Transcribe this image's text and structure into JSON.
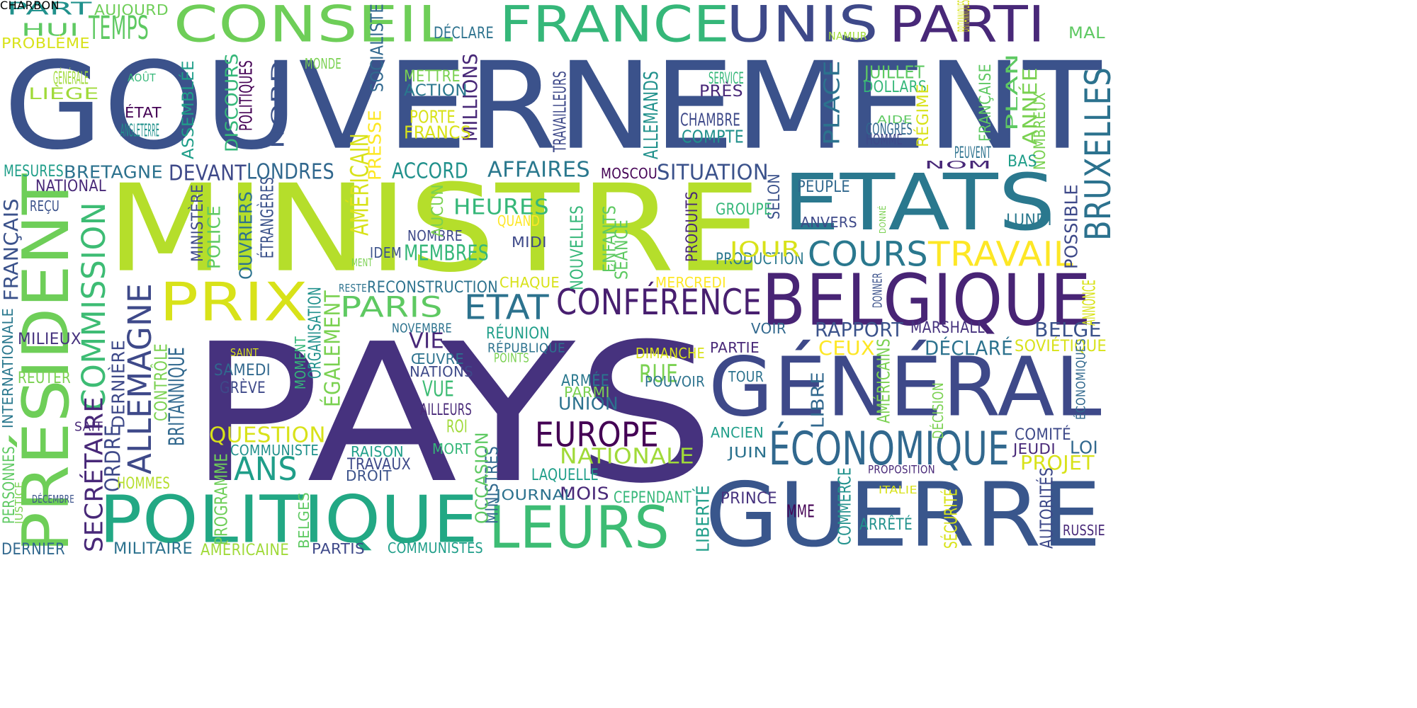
{
  "words": [
    {
      "text": "GOUVERNEMENT",
      "color": "#3b528b"
    },
    {
      "text": "MINISTRE",
      "color": "#b5de2b"
    },
    {
      "text": "PAYS",
      "color": "#46327e"
    },
    {
      "text": "ETATS",
      "color": "#2a788e"
    },
    {
      "text": "GÉNÉRAL",
      "color": "#3e4989"
    },
    {
      "text": "GUERRE",
      "color": "#39568c"
    },
    {
      "text": "BELGIQUE",
      "color": "#482475"
    },
    {
      "text": "PRÉSIDENT",
      "color": "#6ece58"
    },
    {
      "text": "FRANCE",
      "color": "#35b779"
    },
    {
      "text": "CONSEIL",
      "color": "#6ece58"
    },
    {
      "text": "UNIS",
      "color": "#3e4989"
    },
    {
      "text": "PARTI",
      "color": "#482878"
    },
    {
      "text": "POLITIQUE",
      "color": "#22a884"
    },
    {
      "text": "LEURS",
      "color": "#3dbc74"
    },
    {
      "text": "PRIX",
      "color": "#d8e219"
    },
    {
      "text": "ÉCONOMIQUE",
      "color": "#31688e"
    },
    {
      "text": "COURS",
      "color": "#2a788e"
    },
    {
      "text": "TRAVAIL",
      "color": "#fde725"
    },
    {
      "text": "CONFÉRENCE",
      "color": "#481f70"
    },
    {
      "text": "EUROPE",
      "color": "#440154"
    },
    {
      "text": "ETAT",
      "color": "#2c728e"
    },
    {
      "text": "BRUXELLES",
      "color": "#2c728e"
    },
    {
      "text": "COMMISSION",
      "color": "#3dbc74"
    },
    {
      "text": "ALLEMAGNE",
      "color": "#3e4989"
    },
    {
      "text": "PARIS",
      "color": "#5ec962"
    },
    {
      "text": "ANS",
      "color": "#1f9e89"
    },
    {
      "text": "NATIONALE",
      "color": "#a0da39"
    },
    {
      "text": "QUESTION",
      "color": "#d8e219"
    },
    {
      "text": "SECRÉTAIRE",
      "color": "#482878"
    },
    {
      "text": "ORDRE",
      "color": "#3e4989"
    },
    {
      "text": "BRITANNIQUE",
      "color": "#31688e"
    },
    {
      "text": "CONTRÔLE",
      "color": "#7ad151"
    },
    {
      "text": "DERNIÈRE",
      "color": "#3e4989"
    },
    {
      "text": "INTERNATIONALE",
      "color": "#2a788e"
    },
    {
      "text": "FRANÇAIS",
      "color": "#3b528b"
    },
    {
      "text": "PERSONNES",
      "color": "#5ec962"
    },
    {
      "text": "JUSTICE",
      "color": "#7ad151"
    },
    {
      "text": "RAPPORT",
      "color": "#3b528b"
    },
    {
      "text": "BELGE",
      "color": "#3b528b"
    },
    {
      "text": "MARSHALL",
      "color": "#46327e"
    },
    {
      "text": "CEUX",
      "color": "#fde725"
    },
    {
      "text": "DÉCLARÉ",
      "color": "#2c728e"
    },
    {
      "text": "SOVIÉTIQUE",
      "color": "#d8e219"
    },
    {
      "text": "PROJET",
      "color": "#d8e219"
    },
    {
      "text": "COMITÉ",
      "color": "#3e4989"
    },
    {
      "text": "JEUDI",
      "color": "#482878"
    },
    {
      "text": "LOI",
      "color": "#31688e"
    },
    {
      "text": "HEURES",
      "color": "#35b779"
    },
    {
      "text": "MEMBRES",
      "color": "#35b779"
    },
    {
      "text": "RECONSTRUCTION",
      "color": "#2c728e"
    },
    {
      "text": "AFFAIRES",
      "color": "#2a788e"
    },
    {
      "text": "ACCORD",
      "color": "#21918c"
    },
    {
      "text": "SITUATION",
      "color": "#3b528b"
    },
    {
      "text": "LONDRES",
      "color": "#31688e"
    },
    {
      "text": "DEVANT",
      "color": "#3e4989"
    },
    {
      "text": "BRETAGNE",
      "color": "#2c728e"
    },
    {
      "text": "MESURES",
      "color": "#1f9e89"
    },
    {
      "text": "NATIONAL",
      "color": "#482878"
    },
    {
      "text": "REÇU",
      "color": "#3b528b"
    },
    {
      "text": "MILIEUX",
      "color": "#46327e"
    },
    {
      "text": "REUTER",
      "color": "#7ad151"
    },
    {
      "text": "SAIT",
      "color": "#482878"
    },
    {
      "text": "HOMMES",
      "color": "#b5de2b"
    },
    {
      "text": "PROGRAMME",
      "color": "#6ece58"
    },
    {
      "text": "COMMUNISTE",
      "color": "#21918c"
    },
    {
      "text": "COMMUNISTES",
      "color": "#1f9e89"
    },
    {
      "text": "PARTIS",
      "color": "#3e4989"
    },
    {
      "text": "MILITAIRE",
      "color": "#2c728e"
    },
    {
      "text": "AMÉRICAINE",
      "color": "#a0da39"
    },
    {
      "text": "DERNIER",
      "color": "#31688e"
    },
    {
      "text": "DÉCEMBRE",
      "color": "#3b528b"
    },
    {
      "text": "BELGES",
      "color": "#5ec962"
    },
    {
      "text": "RAISON",
      "color": "#1f9e89"
    },
    {
      "text": "TRAVAUX",
      "color": "#3e4989"
    },
    {
      "text": "DROIT",
      "color": "#3b528b"
    },
    {
      "text": "MORT",
      "color": "#35b779"
    },
    {
      "text": "ROI",
      "color": "#a0da39"
    },
    {
      "text": "VUE",
      "color": "#3dbc74"
    },
    {
      "text": "AILLEURS",
      "color": "#482878"
    },
    {
      "text": "NATIONS",
      "color": "#3e4989"
    },
    {
      "text": "ŒUVRE",
      "color": "#2c728e"
    },
    {
      "text": "VIE",
      "color": "#482878"
    },
    {
      "text": "NOVEMBRE",
      "color": "#2c728e"
    },
    {
      "text": "RÉUNION",
      "color": "#1f9e89"
    },
    {
      "text": "RÉPUBLIQUE",
      "color": "#2c728e"
    },
    {
      "text": "POINTS",
      "color": "#7ad151"
    },
    {
      "text": "CHAQUE",
      "color": "#d8e219"
    },
    {
      "text": "MERCREDI",
      "color": "#fde725"
    },
    {
      "text": "MOIS",
      "color": "#482878"
    },
    {
      "text": "CEPENDANT",
      "color": "#35b779"
    },
    {
      "text": "LAQUELLE",
      "color": "#1f9e89"
    },
    {
      "text": "JOURNAL",
      "color": "#2c728e"
    },
    {
      "text": "MINISTRES",
      "color": "#31688e"
    },
    {
      "text": "OCCASION",
      "color": "#5ec962"
    },
    {
      "text": "UNION",
      "color": "#2c728e"
    },
    {
      "text": "PARMI",
      "color": "#7ad151"
    },
    {
      "text": "ARMÉE",
      "color": "#2a788e"
    },
    {
      "text": "RUE",
      "color": "#7ad151"
    },
    {
      "text": "DIMANCHE",
      "color": "#d8e219"
    },
    {
      "text": "POUVOIR",
      "color": "#2c728e"
    },
    {
      "text": "PARTIE",
      "color": "#482878"
    },
    {
      "text": "VOIR",
      "color": "#31688e"
    },
    {
      "text": "TOUR",
      "color": "#2c728e"
    },
    {
      "text": "ANCIEN",
      "color": "#1f9e89"
    },
    {
      "text": "JUIN",
      "color": "#2c728e"
    },
    {
      "text": "PRINCE",
      "color": "#46327e"
    },
    {
      "text": "MME",
      "color": "#440154"
    },
    {
      "text": "ARRÊTÉ",
      "color": "#21918c"
    },
    {
      "text": "LIBRE",
      "color": "#31688e"
    },
    {
      "text": "LIBERTÉ",
      "color": "#1f9e89"
    },
    {
      "text": "COMMERCE",
      "color": "#21918c"
    },
    {
      "text": "DÉCISION",
      "color": "#7ad151"
    },
    {
      "text": "AMÉRICAINS",
      "color": "#7ad151"
    },
    {
      "text": "SÉCURITÉ",
      "color": "#d8e219"
    },
    {
      "text": "AUTORITÉS",
      "color": "#3e4989"
    },
    {
      "text": "RUSSIE",
      "color": "#482878"
    },
    {
      "text": "ITALIE",
      "color": "#d8e219"
    },
    {
      "text": "PROPOSITION",
      "color": "#482878"
    },
    {
      "text": "ÉCONOMIQUES",
      "color": "#31688e"
    },
    {
      "text": "ANNONCE",
      "color": "#d8e219"
    },
    {
      "text": "LUNDI",
      "color": "#2a788e"
    },
    {
      "text": "POSSIBLE",
      "color": "#3e4989"
    },
    {
      "text": "PEUPLE",
      "color": "#31688e"
    },
    {
      "text": "ANVERS",
      "color": "#3e4989"
    },
    {
      "text": "DONNER",
      "color": "#3b528b"
    },
    {
      "text": "DONNÉ",
      "color": "#7ad151"
    },
    {
      "text": "SELON",
      "color": "#3b528b"
    },
    {
      "text": "GROUPE",
      "color": "#35b779"
    },
    {
      "text": "PRODUCTION",
      "color": "#2a788e"
    },
    {
      "text": "JOUR",
      "color": "#d8e219"
    },
    {
      "text": "PRODUITS",
      "color": "#482878"
    },
    {
      "text": "SÉANCE",
      "color": "#5ec962"
    },
    {
      "text": "ENFANTS",
      "color": "#5ec962"
    },
    {
      "text": "NOUVELLES",
      "color": "#35b779"
    },
    {
      "text": "MOSCOU",
      "color": "#440154"
    },
    {
      "text": "MIDI",
      "color": "#3e4989"
    },
    {
      "text": "QUAND",
      "color": "#fde725"
    },
    {
      "text": "NOMBRE",
      "color": "#3e4989"
    },
    {
      "text": "AUCUN",
      "color": "#7ad151"
    },
    {
      "text": "IDEM",
      "color": "#3b528b"
    },
    {
      "text": "MENT",
      "color": "#7ad151"
    },
    {
      "text": "RESTE",
      "color": "#2c728e"
    },
    {
      "text": "AMÉRICAIN",
      "color": "#d8e219"
    },
    {
      "text": "ÉGALEMENT",
      "color": "#7ad151"
    },
    {
      "text": "ORGANISATION",
      "color": "#21918c"
    },
    {
      "text": "MOMENT",
      "color": "#35b779"
    },
    {
      "text": "SAINT",
      "color": "#d8e219"
    },
    {
      "text": "SAMEDI",
      "color": "#31688e"
    },
    {
      "text": "GRÈVE",
      "color": "#3e4989"
    },
    {
      "text": "POLICE",
      "color": "#5ec962"
    },
    {
      "text": "MINISTÈRE",
      "color": "#3e4989"
    },
    {
      "text": "OUVRIERS",
      "color": "#2c728e"
    },
    {
      "text": "ÉTRANGÈRES",
      "color": "#3b528b"
    },
    {
      "text": "PRESSE",
      "color": "#fde725"
    },
    {
      "text": "MILLIONS",
      "color": "#482878"
    },
    {
      "text": "FRANCS",
      "color": "#d8e219"
    },
    {
      "text": "PORTE",
      "color": "#d8e219"
    },
    {
      "text": "ACTION",
      "color": "#2a788e"
    },
    {
      "text": "METTRE",
      "color": "#7ad151"
    },
    {
      "text": "SOCIALISTE",
      "color": "#31688e"
    },
    {
      "text": "DÉCLARE",
      "color": "#2c728e"
    },
    {
      "text": "MONDE",
      "color": "#7ad151"
    },
    {
      "text": "NORD",
      "color": "#3b528b"
    },
    {
      "text": "POLITIQUES",
      "color": "#440154"
    },
    {
      "text": "DISCOURS",
      "color": "#35b779"
    },
    {
      "text": "ASSEMBLÉE",
      "color": "#1f9e89"
    },
    {
      "text": "ANGLETERRE",
      "color": "#21918c"
    },
    {
      "text": "ÉTAT",
      "color": "#440154"
    },
    {
      "text": "AOÛT",
      "color": "#35b779"
    },
    {
      "text": "LIÈGE",
      "color": "#a0da39"
    },
    {
      "text": "GÉNÉRALE",
      "color": "#a0da39"
    },
    {
      "text": "HUI",
      "color": "#5ec962"
    },
    {
      "text": "TEMPS",
      "color": "#5ec962"
    },
    {
      "text": "PART",
      "color": "#21918c"
    },
    {
      "text": "AUJOURD",
      "color": "#6ece58"
    },
    {
      "text": "PROBLÈME",
      "color": "#d8e219"
    },
    {
      "text": "TRAVAILLEURS",
      "color": "#3e4989"
    },
    {
      "text": "ALLEMANDS",
      "color": "#21918c"
    },
    {
      "text": "CHAMBRE",
      "color": "#3e4989"
    },
    {
      "text": "COMPTE",
      "color": "#21918c"
    },
    {
      "text": "SERVICE",
      "color": "#35b779"
    },
    {
      "text": "PRÈS",
      "color": "#482878"
    },
    {
      "text": "PLACE",
      "color": "#2c728e"
    },
    {
      "text": "JUILLET",
      "color": "#5ec962"
    },
    {
      "text": "DOLLARS",
      "color": "#35b779"
    },
    {
      "text": "CONGRÈS",
      "color": "#31688e"
    },
    {
      "text": "HOMME",
      "color": "#3e4989"
    },
    {
      "text": "AIDE",
      "color": "#5ec962"
    },
    {
      "text": "RÉGIME",
      "color": "#d8e219"
    },
    {
      "text": "ANNÉE",
      "color": "#7ad151"
    },
    {
      "text": "PLAN",
      "color": "#5ec962"
    },
    {
      "text": "NOMBREUX",
      "color": "#7ad151"
    },
    {
      "text": "FRANÇAISE",
      "color": "#5ec962"
    },
    {
      "text": "PEUVENT",
      "color": "#2c728e"
    },
    {
      "text": "BAS",
      "color": "#1f9e89"
    },
    {
      "text": "NOM",
      "color": "#482878"
    },
    {
      "text": "BRITANNIQUES",
      "color": "#d8e219"
    },
    {
      "text": "MAL",
      "color": "#5ec962"
    },
    {
      "text": "NAMUR",
      "color": "#a0da39"
    },
    {
      "text": "CHARBON",
      "color": "#21918c"
    }
  ]
}
